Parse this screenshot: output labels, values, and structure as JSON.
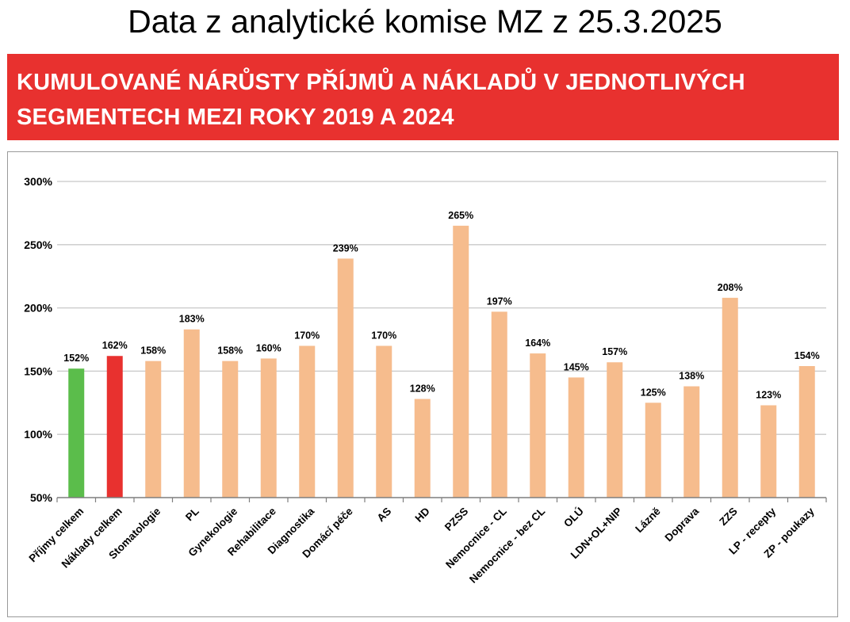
{
  "header": {
    "title": "Data z analytické komise MZ z 25.3.2025"
  },
  "banner": {
    "line1": "KUMULOVANÉ NÁRŮSTY PŘÍJMŮ A NÁKLADŮ V JEDNOTLIVÝCH",
    "line2": "SEGMENTECH MEZI ROKY 2019 A 2024"
  },
  "colors": {
    "banner": "#e8312f",
    "income_bar": "#5bbd4b",
    "cost_bar": "#e8312f",
    "segment_bar": "#f6bc8d",
    "gridline": "#c8c8c8"
  },
  "chart_data": {
    "type": "bar",
    "title": "KUMULOVANÉ NÁRŮSTY PŘÍJMŮ A NÁKLADŮ V JEDNOTLIVÝCH SEGMENTECH MEZI ROKY 2019 A 2024",
    "xlabel": "",
    "ylabel": "",
    "ylim": [
      50,
      300
    ],
    "yticks": [
      50,
      100,
      150,
      200,
      250,
      300
    ],
    "ytick_labels": [
      "50%",
      "100%",
      "150%",
      "200%",
      "250%",
      "300%"
    ],
    "grid": true,
    "categories": [
      "Příjmy celkem",
      "Náklady celkem",
      "Stomatologie",
      "PL",
      "Gynekologie",
      "Rehabilitace",
      "Diagnostika",
      "Domácí péče",
      "AS",
      "HD",
      "PZSS",
      "Nemocnice - CL",
      "Nemocnice - bez CL",
      "OLÚ",
      "LDN+OL+NIP",
      "Lázně",
      "Doprava",
      "ZZS",
      "LP - recepty",
      "ZP - poukazy"
    ],
    "values": [
      152,
      162,
      158,
      183,
      158,
      160,
      170,
      239,
      170,
      128,
      265,
      197,
      164,
      145,
      157,
      125,
      138,
      208,
      123,
      154
    ],
    "data_labels": [
      "152%",
      "162%",
      "158%",
      "183%",
      "158%",
      "160%",
      "170%",
      "239%",
      "170%",
      "128%",
      "265%",
      "197%",
      "164%",
      "145%",
      "157%",
      "125%",
      "138%",
      "208%",
      "123%",
      "154%"
    ],
    "bar_color_keys": [
      "income_bar",
      "cost_bar",
      "segment_bar",
      "segment_bar",
      "segment_bar",
      "segment_bar",
      "segment_bar",
      "segment_bar",
      "segment_bar",
      "segment_bar",
      "segment_bar",
      "segment_bar",
      "segment_bar",
      "segment_bar",
      "segment_bar",
      "segment_bar",
      "segment_bar",
      "segment_bar",
      "segment_bar",
      "segment_bar"
    ]
  }
}
